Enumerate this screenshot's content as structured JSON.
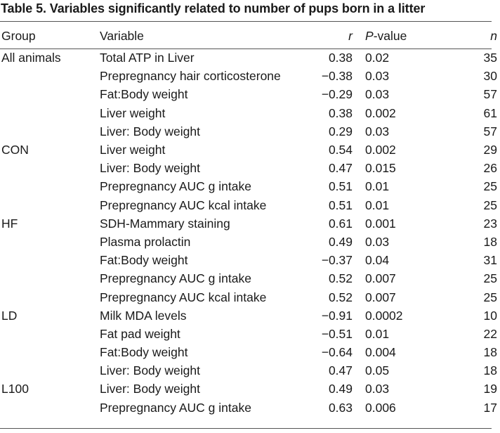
{
  "table": {
    "title": "Table 5. Variables significantly related to number of pups born in a litter",
    "headers": {
      "group": "Group",
      "variable": "Variable",
      "r": "r",
      "p_italic": "P",
      "p_rest": "-value",
      "n": "n"
    },
    "rows": [
      {
        "group": "All animals",
        "variable": "Total ATP in Liver",
        "r": "0.38",
        "p": "0.02",
        "n": "35"
      },
      {
        "group": "",
        "variable": "Prepregnancy hair corticosterone",
        "r": "−0.38",
        "p": "0.03",
        "n": "30"
      },
      {
        "group": "",
        "variable": "Fat:Body weight",
        "r": "−0.29",
        "p": "0.03",
        "n": "57"
      },
      {
        "group": "",
        "variable": "Liver weight",
        "r": "0.38",
        "p": "0.002",
        "n": "61"
      },
      {
        "group": "",
        "variable": "Liver: Body weight",
        "r": "0.29",
        "p": "0.03",
        "n": "57"
      },
      {
        "group": "CON",
        "variable": "Liver weight",
        "r": "0.54",
        "p": "0.002",
        "n": "29"
      },
      {
        "group": "",
        "variable": "Liver: Body weight",
        "r": "0.47",
        "p": "0.015",
        "n": "26"
      },
      {
        "group": "",
        "variable": "Prepregnancy AUC g intake",
        "r": "0.51",
        "p": "0.01",
        "n": "25"
      },
      {
        "group": "",
        "variable": "Prepregnancy AUC kcal intake",
        "r": "0.51",
        "p": "0.01",
        "n": "25"
      },
      {
        "group": "HF",
        "variable": "SDH-Mammary staining",
        "r": "0.61",
        "p": "0.001",
        "n": "23"
      },
      {
        "group": "",
        "variable": "Plasma prolactin",
        "r": "0.49",
        "p": "0.03",
        "n": "18"
      },
      {
        "group": "",
        "variable": "Fat:Body weight",
        "r": "−0.37",
        "p": "0.04",
        "n": "31"
      },
      {
        "group": "",
        "variable": "Prepregnancy AUC g intake",
        "r": "0.52",
        "p": "0.007",
        "n": "25"
      },
      {
        "group": "",
        "variable": "Prepregnancy AUC kcal intake",
        "r": "0.52",
        "p": "0.007",
        "n": "25"
      },
      {
        "group": "LD",
        "variable": "Milk MDA levels",
        "r": "−0.91",
        "p": "0.0002",
        "n": "10"
      },
      {
        "group": "",
        "variable": "Fat pad weight",
        "r": "−0.51",
        "p": "0.01",
        "n": "22"
      },
      {
        "group": "",
        "variable": "Fat:Body weight",
        "r": "−0.64",
        "p": "0.004",
        "n": "18"
      },
      {
        "group": "",
        "variable": "Liver: Body weight",
        "r": "0.47",
        "p": "0.05",
        "n": "18"
      },
      {
        "group": "L100",
        "variable": "Liver: Body weight",
        "r": "0.49",
        "p": "0.03",
        "n": "19"
      },
      {
        "group": "",
        "variable": "Prepregnancy AUC g intake",
        "r": "0.63",
        "p": "0.006",
        "n": "17"
      }
    ]
  }
}
